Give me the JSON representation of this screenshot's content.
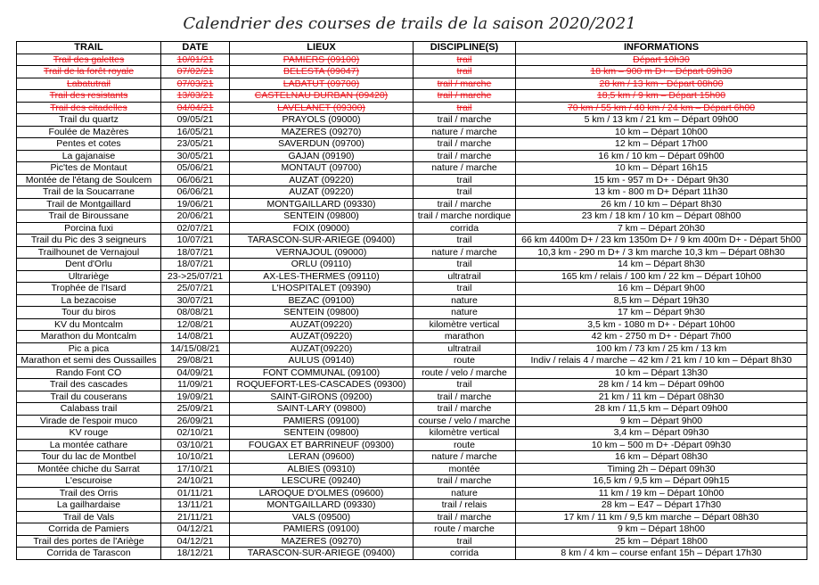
{
  "header": {
    "title": "Calendrier des courses de trails de la saison 2020/2021"
  },
  "table": {
    "columns": [
      "TRAIL",
      "DATE",
      "LIEUX",
      "DISCIPLINE(S)",
      "INFORMATIONS"
    ],
    "rows": [
      [
        "Trail des galettes",
        "10/01/21",
        "PAMIERS (09100)",
        "trail",
        "Départ 10h30"
      ],
      [
        "Trail de la forêt royale",
        "07/02/21",
        "BELESTA (09047)",
        "trail",
        "18 km – 900 m D+ - Départ 09h30"
      ],
      [
        "Labatutrail",
        "07/03/21",
        "LABATUT (09700)",
        "trail / marche",
        "28 km / 13 km - Départ 08h00"
      ],
      [
        "Trail des resistants",
        "13/03/21",
        "CASTELNAU DURBAN (09420)",
        "trail / marche",
        "18,5 km / 9 km – Départ 15h00"
      ],
      [
        "Trail des citadelles",
        "04/04/21",
        "LAVELANET (09300)",
        "trail",
        "70 km / 55 km / 40 km / 24 km – Départ 6h00"
      ],
      [
        "Trail du quartz",
        "09/05/21",
        "PRAYOLS (09000)",
        "trail / marche",
        "5 km / 13 km / 21 km – Départ 09h00"
      ],
      [
        "Foulée de Mazères",
        "16/05/21",
        "MAZERES (09270)",
        "nature / marche",
        "10 km – Départ 10h00"
      ],
      [
        "Pentes et cotes",
        "23/05/21",
        "SAVERDUN (09700)",
        "trail / marche",
        "12 km – Départ 17h00"
      ],
      [
        "La gajanaise",
        "30/05/21",
        "GAJAN (09190)",
        "trail / marche",
        "16 km / 10 km – Départ 09h00"
      ],
      [
        "Pic'tes de Montaut",
        "05/06/21",
        "MONTAUT (09700)",
        "nature / marche",
        "10 km – Départ 16h15"
      ],
      [
        "Montée de l'étang de Soulcem",
        "06/06/21",
        "AUZAT (09220)",
        "trail",
        "15 km - 957 m D+ - Départ 9h30"
      ],
      [
        "Trail de la Soucarrane",
        "06/06/21",
        "AUZAT (09220)",
        "trail",
        "13 km - 800 m D+ Départ 11h30"
      ],
      [
        "Trail de Montgaillard",
        "19/06/21",
        "MONTGAILLARD (09330)",
        "trail / marche",
        "26 km / 10 km – Départ 8h30"
      ],
      [
        "Trail de Biroussane",
        "20/06/21",
        "SENTEIN (09800)",
        "trail / marche nordique",
        "23 km / 18 km / 10 km – Départ 08h00"
      ],
      [
        "Porcina fuxi",
        "02/07/21",
        "FOIX (09000)",
        "corrida",
        "7 km – Départ 20h30"
      ],
      [
        "Trail du Pic des 3 seigneurs",
        "10/07/21",
        "TARASCON-SUR-ARIEGE (09400)",
        "trail",
        "66 km 4400m D+ / 23 km 1350m D+ / 9 km 400m D+ - Départ 5h00"
      ],
      [
        "Trailhounet de Vernajoul",
        "18/07/21",
        "VERNAJOUL (09000)",
        "nature / marche",
        "10,3 km - 290 m D+ / 3 km marche 10,3 km – Départ 08h30"
      ],
      [
        "Dent d'Orlu",
        "18/07/21",
        "ORLU (09110)",
        "trail",
        "14 km – Départ 8h30"
      ],
      [
        "Ultrariège",
        "23->25/07/21",
        "AX-LES-THERMES (09110)",
        "ultratrail",
        "165 km / relais / 100 km / 22 km – Départ 10h00"
      ],
      [
        "Trophée de l'Isard",
        "25/07/21",
        "L'HOSPITALET (09390)",
        "trail",
        "16 km – Départ 9h00"
      ],
      [
        "La bezacoise",
        "30/07/21",
        "BEZAC (09100)",
        "nature",
        "8,5 km – Départ 19h30"
      ],
      [
        "Tour du biros",
        "08/08/21",
        "SENTEIN (09800)",
        "nature",
        "17 km – Départ 9h30"
      ],
      [
        "KV du Montcalm",
        "12/08/21",
        "AUZAT(09220)",
        "kilomètre vertical",
        "3,5 km - 1080 m D+ - Départ 10h00"
      ],
      [
        "Marathon du Montcalm",
        "14/08/21",
        "AUZAT(09220)",
        "marathon",
        "42 km - 2750 m D+ - Départ 7h00"
      ],
      [
        "Pic a pica",
        "14/15/08/21",
        "AUZAT(09220)",
        "ultratrail",
        "100 km / 73 km / 25 km / 13 km"
      ],
      [
        "Marathon et semi des Oussailles",
        "29/08/21",
        "AULUS (09140)",
        "route",
        "Indiv / relais 4 / marche – 42 km / 21 km / 10 km – Départ 8h30"
      ],
      [
        "Rando Font CO",
        "04/09/21",
        "FONT COMMUNAL (09100)",
        "route / velo / marche",
        "10 km – Départ 13h30"
      ],
      [
        "Trail des cascades",
        "11/09/21",
        "ROQUEFORT-LES-CASCADES (09300)",
        "trail",
        "28 km / 14 km – Départ 09h00"
      ],
      [
        "Trail du couserans",
        "19/09/21",
        "SAINT-GIRONS (09200)",
        "trail / marche",
        "21 km / 11 km – Départ 08h30"
      ],
      [
        "Calabass trail",
        "25/09/21",
        "SAINT-LARY (09800)",
        "trail / marche",
        "28 km / 11,5 km – Départ 09h00"
      ],
      [
        "Virade de l'espoir muco",
        "26/09/21",
        "PAMIERS (09100)",
        "course / velo / marche",
        "9 km – Départ 9h00"
      ],
      [
        "KV rouge",
        "02/10/21",
        "SENTEIN (09800)",
        "kilomètre vertical",
        "3,4 km – Départ 09h30"
      ],
      [
        "La montée cathare",
        "03/10/21",
        "FOUGAX ET BARRINEUF (09300)",
        "route",
        "10 km – 500 m D+ -Départ 09h30"
      ],
      [
        "Tour du lac de Montbel",
        "10/10/21",
        "LERAN (09600)",
        "nature / marche",
        "16 km – Départ 08h30"
      ],
      [
        "Montée chiche du Sarrat",
        "17/10/21",
        "ALBIES (09310)",
        "montée",
        "Timing 2h – Départ 09h30"
      ],
      [
        "L'escuroise",
        "24/10/21",
        "LESCURE (09240)",
        "trail / marche",
        "16,5 km / 9,5 km – Départ 09h15"
      ],
      [
        "Trail des Orris",
        "01/11/21",
        "LAROQUE D'OLMES (09600)",
        "nature",
        "11 km / 19 km – Départ 10h00"
      ],
      [
        "La gailhardaise",
        "13/11/21",
        "MONTGAILLARD (09330)",
        "trail / relais",
        "28 km – E47 – Départ 17h30"
      ],
      [
        "Trail de Vals",
        "21/11/21",
        "VALS (09500)",
        "trail / marche",
        "17 km / 11 km / 9,5 km marche – Départ 08h30"
      ],
      [
        "Corrida de Pamiers",
        "04/12/21",
        "PAMIERS (09100)",
        "route / marche",
        "9 km – Départ 18h00"
      ],
      [
        "Trail des portes de l'Ariège",
        "04/12/21",
        "MAZERES (09270)",
        "trail",
        "25 km – Départ 18h00"
      ],
      [
        "Corrida de Tarascon",
        "18/12/21",
        "TARASCON-SUR-ARIEGE (09400)",
        "corrida",
        "8 km / 4 km – course enfant 15h – Départ 17h30"
      ]
    ]
  }
}
